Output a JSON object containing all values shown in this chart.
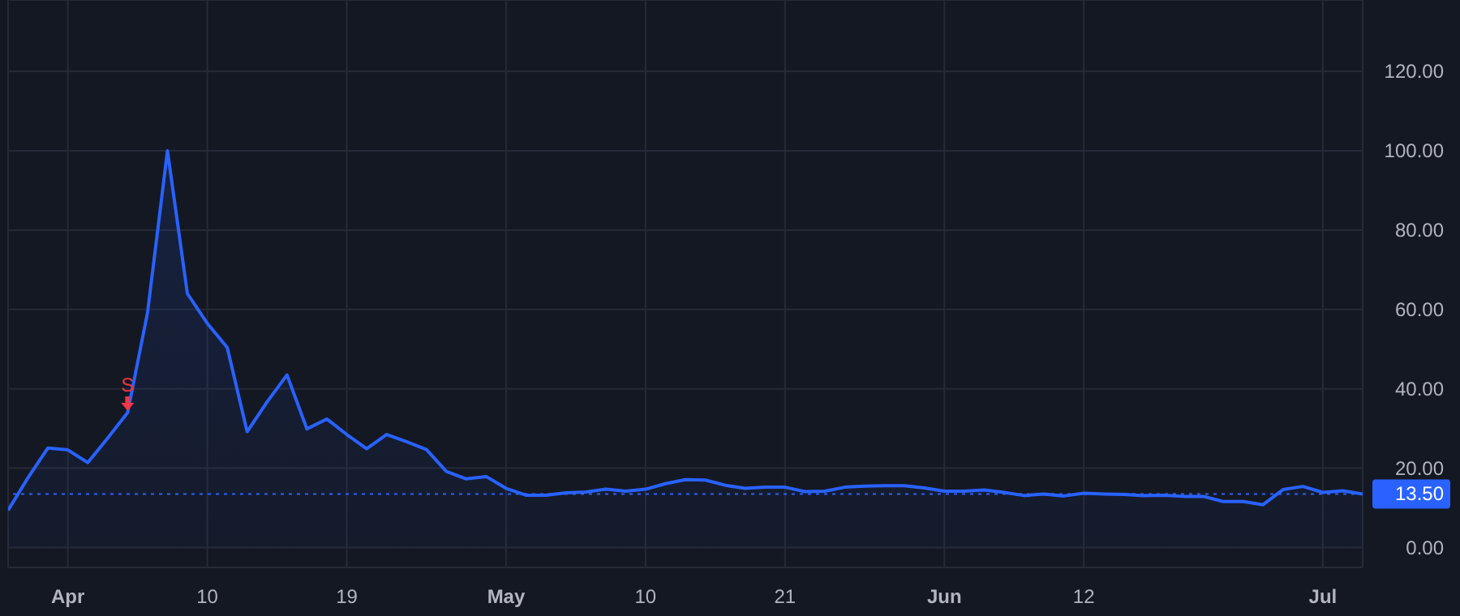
{
  "chart_data": {
    "type": "area",
    "color": "#2962ff",
    "categories": [
      null,
      null,
      null,
      "Apr",
      null,
      null,
      null,
      null,
      null,
      null,
      "10",
      null,
      null,
      null,
      null,
      null,
      null,
      "19",
      null,
      null,
      null,
      null,
      null,
      null,
      null,
      "May",
      null,
      null,
      null,
      null,
      null,
      null,
      "10",
      null,
      null,
      null,
      null,
      null,
      null,
      "21",
      null,
      null,
      null,
      null,
      null,
      null,
      null,
      "Jun",
      null,
      null,
      null,
      null,
      null,
      null,
      "12",
      null,
      null,
      null,
      null,
      null,
      null,
      null,
      null,
      null,
      null,
      null,
      "Jul",
      null,
      null
    ],
    "values": [
      9.4,
      17.6,
      25.1,
      24.6,
      21.4,
      27.6,
      34.0,
      59.2,
      100,
      64.0,
      56.5,
      50.4,
      29.2,
      36.7,
      43.5,
      29.9,
      32.4,
      28.5,
      24.9,
      28.5,
      26.7,
      24.7,
      19.2,
      17.3,
      17.9,
      14.9,
      13.2,
      13.2,
      13.8,
      14.0,
      14.7,
      14.2,
      14.7,
      16.1,
      17.1,
      17.0,
      15.7,
      14.9,
      15.2,
      15.2,
      14.1,
      14.2,
      15.2,
      15.5,
      15.6,
      15.6,
      15.0,
      14.2,
      14.2,
      14.5,
      13.9,
      13.1,
      13.5,
      13.0,
      13.7,
      13.5,
      13.4,
      13.1,
      13.2,
      12.9,
      12.9,
      11.6,
      11.6,
      10.8,
      14.6,
      15.4,
      13.9,
      14.3,
      13.5
    ],
    "ylim": [
      -5,
      138
    ],
    "yticks": [
      {
        "value": 0,
        "label": "0.00"
      },
      {
        "value": 20,
        "label": "20.00"
      },
      {
        "value": 40,
        "label": "40.00"
      },
      {
        "value": 60,
        "label": "60.00"
      },
      {
        "value": 80,
        "label": "80.00"
      },
      {
        "value": 100,
        "label": "100.00"
      },
      {
        "value": 120,
        "label": "120.00"
      }
    ],
    "grid": true,
    "ref_lines": [
      {
        "axis": "y",
        "value": 13.5,
        "label": "13.50",
        "color": "#2962ff",
        "line_style": "dotted"
      }
    ],
    "annotations": [
      {
        "text": "S",
        "y": 34.0
      }
    ]
  }
}
